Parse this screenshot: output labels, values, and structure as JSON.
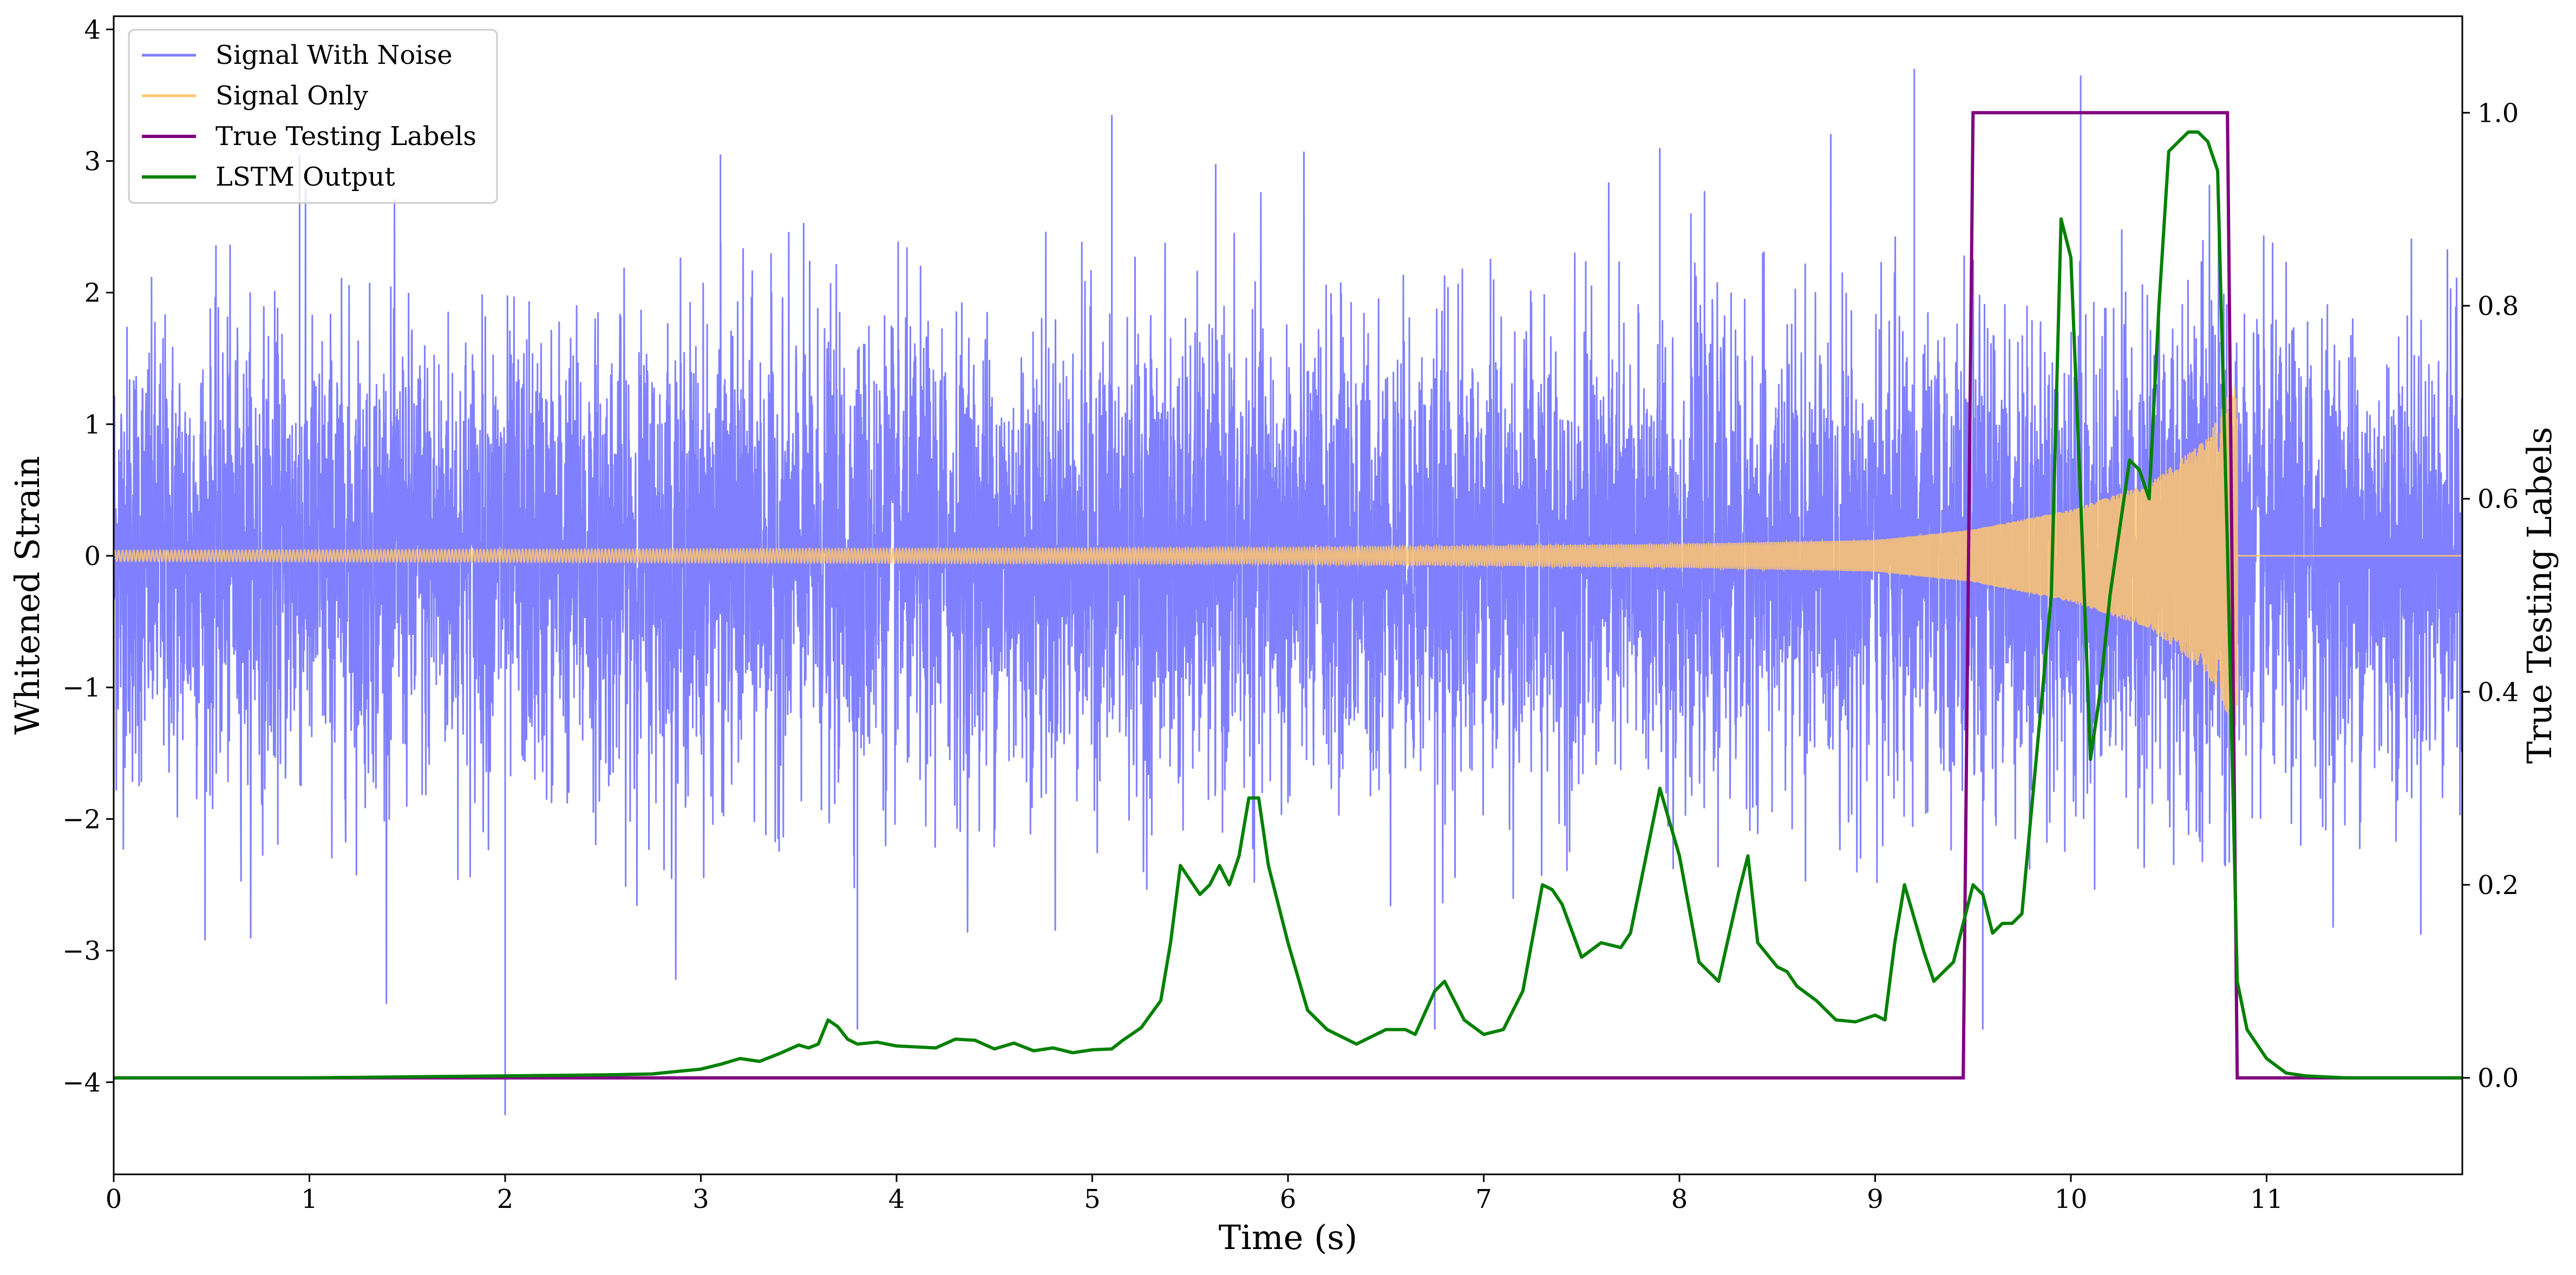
{
  "chart_data": {
    "type": "line",
    "title": "",
    "xlabel": "Time (s)",
    "ylabel": "Whitened Strain",
    "y2label": "True Testing Labels",
    "xlim": [
      0,
      12
    ],
    "ylim": [
      -4.7,
      4.1
    ],
    "y2lim": [
      -0.1,
      1.1
    ],
    "x_ticks": [
      "0",
      "1",
      "2",
      "3",
      "4",
      "5",
      "6",
      "7",
      "8",
      "9",
      "10",
      "11"
    ],
    "y_ticks": [
      "−4",
      "−3",
      "−2",
      "−1",
      "0",
      "1",
      "2",
      "3",
      "4"
    ],
    "y2_ticks": [
      "0.0",
      "0.2",
      "0.4",
      "0.6",
      "0.8",
      "1.0"
    ],
    "grid": false,
    "legend_position": "top-left",
    "series": [
      {
        "name": "Signal With Noise",
        "axis": "left",
        "color": "#7f7fff",
        "description_of_values": "dense noise, roughly ±1.5 with spikes to about ±3.5",
        "noise_std": 0.85,
        "spikes": [
          [
            2.0,
            -4.25
          ],
          [
            0.95,
            3.05
          ],
          [
            10.05,
            3.65
          ],
          [
            9.2,
            3.7
          ],
          [
            3.1,
            3.05
          ],
          [
            3.8,
            -3.6
          ],
          [
            5.1,
            3.35
          ],
          [
            6.75,
            -3.6
          ],
          [
            7.9,
            3.1
          ],
          [
            9.55,
            -3.6
          ]
        ]
      },
      {
        "name": "Signal Only",
        "axis": "left",
        "color": "#ffc66e",
        "description_of_values": "chirp growing in amplitude and frequency until merger near 10.85 s, then zero",
        "merger_time": 10.85,
        "envelope": [
          [
            0,
            0.04
          ],
          [
            6,
            0.06
          ],
          [
            8,
            0.09
          ],
          [
            9,
            0.12
          ],
          [
            9.5,
            0.2
          ],
          [
            10,
            0.35
          ],
          [
            10.4,
            0.55
          ],
          [
            10.7,
            0.9
          ],
          [
            10.83,
            1.3
          ]
        ]
      },
      {
        "name": "True Testing Labels",
        "axis": "right",
        "color": "#800080",
        "x": [
          0,
          9.45,
          9.5,
          10.8,
          10.85,
          12
        ],
        "values": [
          0,
          0,
          1,
          1,
          0,
          0
        ]
      },
      {
        "name": "LSTM Output",
        "axis": "right",
        "color": "#008000",
        "x": [
          0,
          1.0,
          1.5,
          2.0,
          2.5,
          2.75,
          3.0,
          3.1,
          3.2,
          3.3,
          3.4,
          3.5,
          3.55,
          3.6,
          3.65,
          3.7,
          3.75,
          3.8,
          3.9,
          4.0,
          4.2,
          4.3,
          4.4,
          4.5,
          4.6,
          4.7,
          4.8,
          4.9,
          5.0,
          5.1,
          5.15,
          5.25,
          5.3,
          5.35,
          5.4,
          5.45,
          5.55,
          5.6,
          5.65,
          5.7,
          5.75,
          5.8,
          5.85,
          5.9,
          5.95,
          6.0,
          6.1,
          6.2,
          6.35,
          6.4,
          6.5,
          6.6,
          6.65,
          6.75,
          6.8,
          6.9,
          7.0,
          7.1,
          7.2,
          7.3,
          7.35,
          7.4,
          7.5,
          7.6,
          7.7,
          7.75,
          7.8,
          7.9,
          8.0,
          8.1,
          8.2,
          8.3,
          8.35,
          8.4,
          8.5,
          8.55,
          8.6,
          8.7,
          8.8,
          8.9,
          9.0,
          9.05,
          9.1,
          9.15,
          9.25,
          9.3,
          9.4,
          9.5,
          9.55,
          9.6,
          9.65,
          9.7,
          9.75,
          9.8,
          9.9,
          9.95,
          10.0,
          10.05,
          10.1,
          10.15,
          10.2,
          10.3,
          10.35,
          10.4,
          10.45,
          10.5,
          10.55,
          10.6,
          10.65,
          10.7,
          10.75,
          10.8,
          10.85,
          10.9,
          11.0,
          11.1,
          11.2,
          11.4,
          12.0
        ],
        "values": [
          0,
          0,
          0.001,
          0.002,
          0.003,
          0.004,
          0.009,
          0.014,
          0.02,
          0.017,
          0.025,
          0.034,
          0.031,
          0.035,
          0.06,
          0.053,
          0.04,
          0.035,
          0.037,
          0.033,
          0.031,
          0.04,
          0.039,
          0.03,
          0.036,
          0.028,
          0.031,
          0.026,
          0.029,
          0.03,
          0.038,
          0.052,
          0.066,
          0.08,
          0.14,
          0.22,
          0.19,
          0.2,
          0.22,
          0.2,
          0.23,
          0.29,
          0.29,
          0.22,
          0.18,
          0.14,
          0.07,
          0.05,
          0.035,
          0.04,
          0.05,
          0.05,
          0.045,
          0.09,
          0.1,
          0.06,
          0.045,
          0.05,
          0.09,
          0.2,
          0.195,
          0.18,
          0.125,
          0.14,
          0.135,
          0.15,
          0.2,
          0.3,
          0.23,
          0.12,
          0.1,
          0.19,
          0.23,
          0.14,
          0.115,
          0.11,
          0.095,
          0.08,
          0.06,
          0.058,
          0.065,
          0.06,
          0.14,
          0.2,
          0.13,
          0.1,
          0.12,
          0.2,
          0.19,
          0.15,
          0.16,
          0.16,
          0.17,
          0.28,
          0.5,
          0.89,
          0.85,
          0.6,
          0.33,
          0.4,
          0.5,
          0.64,
          0.63,
          0.6,
          0.8,
          0.96,
          0.97,
          0.98,
          0.98,
          0.97,
          0.94,
          0.55,
          0.1,
          0.05,
          0.02,
          0.005,
          0.002,
          0.0,
          0.0
        ]
      }
    ]
  }
}
